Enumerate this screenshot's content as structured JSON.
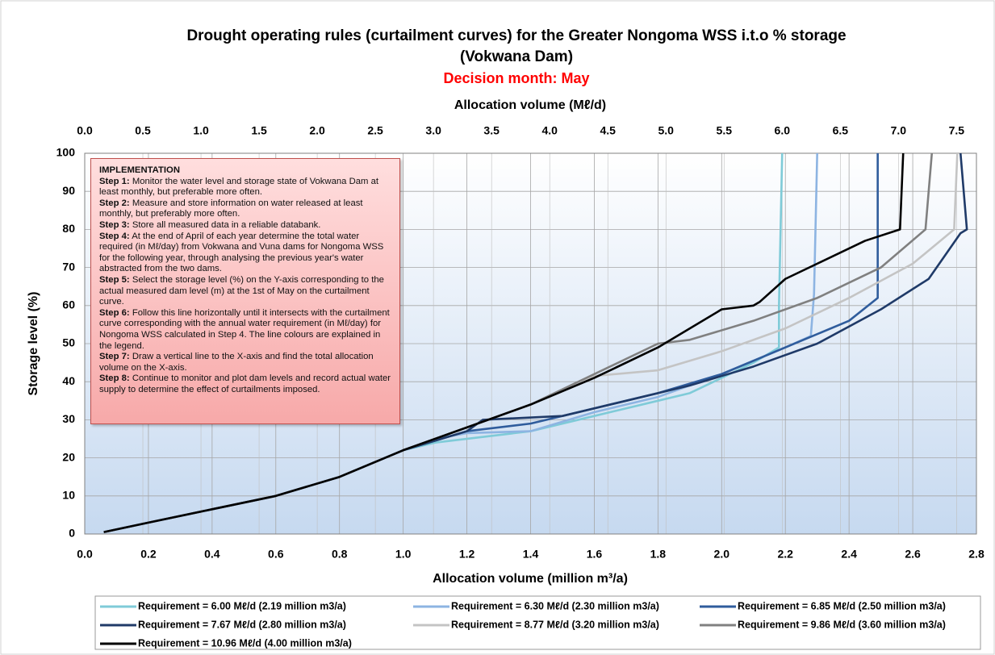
{
  "chart_data": {
    "type": "line",
    "title": "Drought operating rules (curtailment curves) for the Greater Nongoma WSS i.t.o % storage",
    "title_line2": "(Vokwana Dam)",
    "subtitle": "Decision month: May",
    "x_label": "Allocation volume (million m³/a)",
    "x2_label": "Allocation volume (Mℓ/d)",
    "y_label": "Storage level (%)",
    "xlim": [
      0,
      2.8
    ],
    "xticks": [
      {
        "value": 0,
        "label": "0.0"
      },
      0.2,
      0.4,
      0.6,
      0.8,
      {
        "value": 1,
        "label": "1.0"
      },
      1.2,
      1.4,
      1.6,
      1.8,
      {
        "value": 2,
        "label": "2.0"
      },
      2.2,
      2.4,
      2.6,
      2.8
    ],
    "x2lim": [
      0,
      7.671
    ],
    "x2ticks": [
      {
        "value": 0,
        "label": "0.0"
      },
      0.5,
      {
        "value": 1,
        "label": "1.0"
      },
      1.5,
      {
        "value": 2,
        "label": "2.0"
      },
      2.5,
      {
        "value": 3,
        "label": "3.0"
      },
      3.5,
      {
        "value": 4,
        "label": "4.0"
      },
      4.5,
      {
        "value": 5,
        "label": "5.0"
      },
      5.5,
      {
        "value": 6,
        "label": "6.0"
      },
      6.5,
      {
        "value": 7,
        "label": "7.0"
      },
      7.5
    ],
    "ylim": [
      0,
      100
    ],
    "yticks": [
      0,
      10,
      20,
      30,
      40,
      50,
      60,
      70,
      80,
      90,
      100
    ],
    "grid": true,
    "legend": "bottom",
    "series": [
      {
        "name": "Requirement = 6.00 Mℓ/d (2.19 million m3/a)",
        "color": "#7fcbd8",
        "x": [
          0.06,
          0.2,
          0.4,
          0.6,
          0.8,
          1.0,
          1.1,
          1.3,
          1.4,
          1.6,
          1.8,
          1.9,
          2.0,
          2.1,
          2.18,
          2.18,
          2.19
        ],
        "values": [
          0.5,
          3,
          6.5,
          10,
          15,
          22,
          24,
          26,
          27,
          31,
          35,
          37,
          41,
          45,
          49,
          60,
          100
        ]
      },
      {
        "name": "Requirement = 6.30 Mℓ/d (2.30 million m3/a)",
        "color": "#8db4e2",
        "x": [
          0.06,
          0.2,
          0.4,
          0.6,
          0.8,
          1.0,
          1.1,
          1.2,
          1.4,
          1.6,
          1.8,
          2.0,
          2.2,
          2.28,
          2.29,
          2.3
        ],
        "values": [
          0.5,
          3,
          6.5,
          10,
          15,
          22,
          25,
          26.5,
          27,
          32,
          36,
          42,
          49,
          52,
          63,
          100
        ]
      },
      {
        "name": "Requirement = 6.85 Mℓ/d (2.50 million m3/a)",
        "color": "#2f5c9c",
        "x": [
          0.06,
          0.2,
          0.4,
          0.6,
          0.8,
          1.0,
          1.2,
          1.4,
          1.6,
          1.8,
          2.0,
          2.2,
          2.4,
          2.49,
          2.49
        ],
        "values": [
          0.5,
          3,
          6.5,
          10,
          15,
          22,
          27,
          29,
          33,
          37,
          42,
          49,
          56,
          62,
          100
        ]
      },
      {
        "name": "Requirement = 7.67 Mℓ/d (2.80 million m3/a)",
        "color": "#1f3a68",
        "x": [
          0.06,
          0.2,
          0.4,
          0.6,
          0.8,
          1.0,
          1.2,
          1.25,
          1.5,
          1.7,
          1.9,
          2.1,
          2.3,
          2.5,
          2.65,
          2.75,
          2.77,
          2.75
        ],
        "values": [
          0.5,
          3,
          6.5,
          10,
          15,
          22,
          27,
          30,
          31,
          35,
          39,
          44,
          50,
          59,
          67,
          79,
          80,
          100
        ]
      },
      {
        "name": "Requirement = 8.77 Mℓ/d (3.20 million m3/a)",
        "color": "#c4c4c4",
        "x": [
          0.06,
          0.2,
          0.4,
          0.6,
          0.8,
          1.0,
          1.4,
          1.6,
          1.8,
          2.0,
          2.2,
          2.4,
          2.6,
          2.73,
          2.74
        ],
        "values": [
          0.5,
          3,
          6.5,
          10,
          15,
          22,
          34,
          41.5,
          43,
          48,
          54,
          62,
          71,
          80,
          100
        ]
      },
      {
        "name": "Requirement = 9.86 Mℓ/d (3.60 million m3/a)",
        "color": "#808080",
        "x": [
          0.06,
          0.2,
          0.4,
          0.6,
          0.8,
          1.0,
          1.4,
          1.8,
          1.9,
          2.1,
          2.3,
          2.5,
          2.64,
          2.65,
          2.66
        ],
        "values": [
          0.5,
          3,
          6.5,
          10,
          15,
          22,
          34,
          50,
          51,
          56,
          62,
          70,
          80,
          90,
          100
        ]
      },
      {
        "name": "Requirement = 10.96 Mℓ/d (4.00 million m3/a)",
        "color": "#000000",
        "x": [
          0.06,
          0.2,
          0.4,
          0.6,
          0.8,
          1.0,
          1.2,
          1.4,
          1.6,
          1.8,
          2.0,
          2.1,
          2.12,
          2.2,
          2.3,
          2.45,
          2.56,
          2.57
        ],
        "values": [
          0.5,
          3,
          6.5,
          10,
          15,
          22,
          28,
          34,
          41,
          49,
          59,
          60,
          61,
          67,
          71,
          77,
          80,
          100
        ]
      }
    ],
    "annotation": {
      "heading": "IMPLEMENTATION",
      "steps": [
        {
          "label": "Step 1:",
          "text": "Monitor the water level and storage state of Vokwana Dam at least monthly, but preferable more often."
        },
        {
          "label": "Step 2:",
          "text": "Measure and store information on water released at least monthly, but preferably more often."
        },
        {
          "label": "Step 3:",
          "text": "Store all measured data in a reliable databank."
        },
        {
          "label": "Step 4:",
          "text": "At the end of April of each year determine the total water required (in Mℓ/day) from Vokwana and Vuna dams for Nongoma WSS for the following year, through analysing the previous year's water abstracted from the two dams."
        },
        {
          "label": "Step 5:",
          "text": "Select the storage level (%) on the Y-axis corresponding to the actual measured dam level (m) at the 1st of May on the curtailment curve."
        },
        {
          "label": "Step 6:",
          "text": "Follow this line horizontally until it intersects with the curtailment curve corresponding with the annual water requirement (in Mℓ/day) for Nongoma WSS calculated in Step 4. The line colours are explained in the legend."
        },
        {
          "label": "Step 7:",
          "text": "Draw a vertical line to the X-axis and find the total allocation volume on the X-axis."
        },
        {
          "label": "Step 8:",
          "text": "Continue to monitor and plot dam levels and record actual water supply to determine the effect of curtailments imposed."
        }
      ]
    }
  }
}
